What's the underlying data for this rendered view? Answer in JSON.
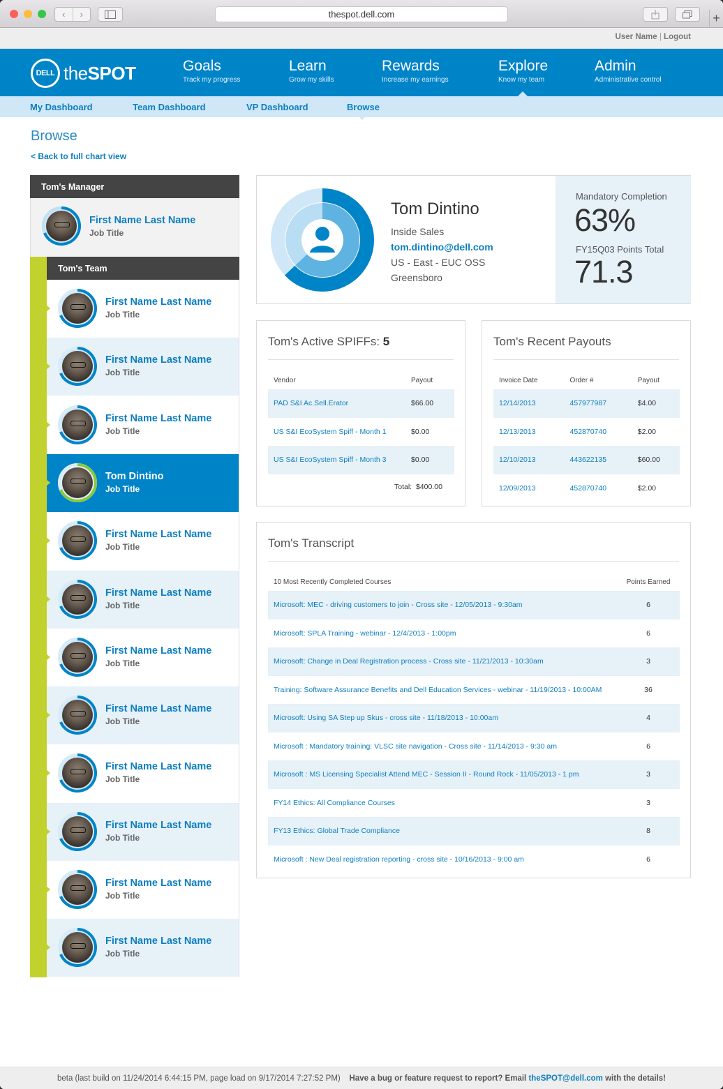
{
  "browser": {
    "url": "thespot.dell.com"
  },
  "util": {
    "user_name": "User Name",
    "sep": "|",
    "logout": "Logout"
  },
  "logo": {
    "dell": "DELL",
    "the": "the",
    "spot": "SPOT"
  },
  "nav": [
    {
      "title": "Goals",
      "sub": "Track my progress"
    },
    {
      "title": "Learn",
      "sub": "Grow my skills"
    },
    {
      "title": "Rewards",
      "sub": "Increase my earnings"
    },
    {
      "title": "Explore",
      "sub": "Know my team"
    },
    {
      "title": "Admin",
      "sub": "Administrative control"
    }
  ],
  "subnav": [
    "My Dashboard",
    "Team Dashboard",
    "VP Dashboard",
    "Browse"
  ],
  "page": {
    "title": "Browse",
    "back": "< Back to full chart view"
  },
  "manager": {
    "header": "Tom's Manager",
    "name": "First Name Last Name",
    "title": "Job Title"
  },
  "team": {
    "header": "Tom's Team",
    "members": [
      {
        "name": "First Name Last Name",
        "title": "Job Title"
      },
      {
        "name": "First Name Last Name",
        "title": "Job Title"
      },
      {
        "name": "First Name Last Name",
        "title": "Job Title"
      },
      {
        "name": "Tom Dintino",
        "title": "Job Title"
      },
      {
        "name": "First Name Last Name",
        "title": "Job Title"
      },
      {
        "name": "First Name Last Name",
        "title": "Job Title"
      },
      {
        "name": "First Name Last Name",
        "title": "Job Title"
      },
      {
        "name": "First Name Last Name",
        "title": "Job Title"
      },
      {
        "name": "First Name Last Name",
        "title": "Job Title"
      },
      {
        "name": "First Name Last Name",
        "title": "Job Title"
      },
      {
        "name": "First Name Last Name",
        "title": "Job Title"
      },
      {
        "name": "First Name Last Name",
        "title": "Job Title"
      }
    ]
  },
  "profile": {
    "name": "Tom Dintino",
    "role": "Inside Sales",
    "email": "tom.dintino@dell.com",
    "region": "US - East - EUC OSS",
    "city": "Greensboro",
    "mandatory_label": "Mandatory Completion",
    "mandatory_value": "63%",
    "points_label": "FY15Q03 Points Total",
    "points_value": "71.3"
  },
  "spiffs": {
    "title": "Tom's Active SPIFFs: ",
    "count": "5",
    "headers": [
      "Vendor",
      "Payout"
    ],
    "rows": [
      [
        "PAD S&I Ac.Sell.Erator",
        "$66.00"
      ],
      [
        "US S&I EcoSystem Spiff - Month 1",
        "$0.00"
      ],
      [
        "US S&I EcoSystem Spiff - Month 3",
        "$0.00"
      ]
    ],
    "total_label": "Total:",
    "total_value": "$400.00"
  },
  "payouts": {
    "title": "Tom's Recent Payouts",
    "headers": [
      "Invoice Date",
      "Order #",
      "Payout"
    ],
    "rows": [
      [
        "12/14/2013",
        "457977987",
        "$4.00"
      ],
      [
        "12/13/2013",
        "452870740",
        "$2.00"
      ],
      [
        "12/10/2013",
        "443622135",
        "$60.00"
      ],
      [
        "12/09/2013",
        "452870740",
        "$2.00"
      ]
    ]
  },
  "transcript": {
    "title": "Tom's Transcript",
    "headers": [
      "10 Most Recently Completed Courses",
      "Points Earned"
    ],
    "rows": [
      [
        "Microsoft: MEC - driving customers to join - Cross site - 12/05/2013 - 9:30am",
        "6"
      ],
      [
        "Microsoft: SPLA Training - webinar - 12/4/2013 - 1:00pm",
        "6"
      ],
      [
        "Microsoft: Change in Deal Registration process - Cross site - 11/21/2013 - 10:30am",
        "3"
      ],
      [
        "Training: Software Assurance Benefits and Dell Education Services - webinar - 11/19/2013 - 10:00AM",
        "36"
      ],
      [
        "Microsoft: Using SA Step up Skus - cross site - 11/18/2013 - 10:00am",
        "4"
      ],
      [
        "Microsoft : Mandatory training: VLSC site navigation - Cross site - 11/14/2013 - 9:30 am",
        "6"
      ],
      [
        "Microsoft : MS Licensing Specialist Attend MEC - Session II - Round Rock - 11/05/2013 - 1 pm",
        "3"
      ],
      [
        "FY14 Ethics: All Compliance Courses",
        "3"
      ],
      [
        "FY13 Ethics: Global Trade Compliance",
        "8"
      ],
      [
        "Microsoft : New Deal registration reporting - cross site - 10/16/2013 - 9:00 am",
        "6"
      ]
    ]
  },
  "footer": {
    "build": "beta (last build on 11/24/2014 6:44:15 PM, page load on 9/17/2014 7:27:52 PM)",
    "report": "Have a bug or feature request to report? Email",
    "email": "theSPOT@dell.com",
    "tail": "with the details!"
  },
  "colors": {
    "brand_blue": "#0084c8",
    "light_blue": "#cfe7f6",
    "lime": "#c1d22e",
    "dark_header": "#444444"
  },
  "icons": [
    "close-dot-icon",
    "minimize-dot-icon",
    "zoom-dot-icon",
    "back-arrow-icon",
    "forward-arrow-icon",
    "sidebar-icon",
    "share-icon",
    "tabs-icon",
    "new-tab-icon",
    "user-silhouette-icon"
  ]
}
